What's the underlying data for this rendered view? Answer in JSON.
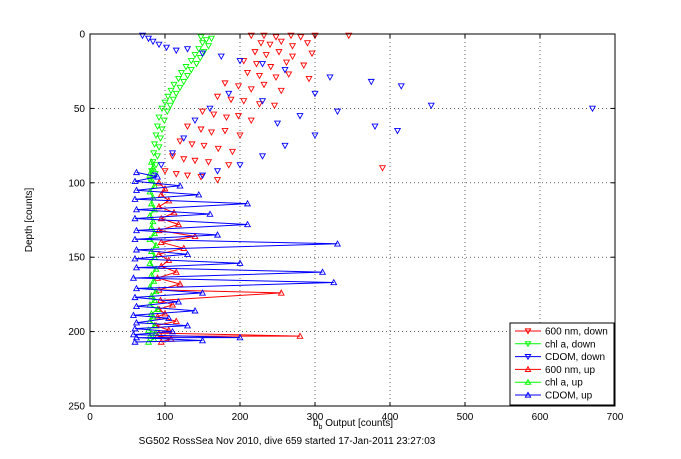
{
  "chart_data": {
    "type": "scatter",
    "xlabel_main": "b",
    "xlabel_sub": "b",
    "xlabel_rest": " Output [counts]",
    "ylabel": "Depth [counts]",
    "caption": "SG502 RossSea Nov 2010, dive 659 started 17-Jan-2011 23:27:03",
    "xlim": [
      0,
      700
    ],
    "ylim": [
      0,
      250
    ],
    "y_reversed": true,
    "grid": true,
    "grid_style": "dotted",
    "legend_position": "bottom-right",
    "xticks": [
      0,
      100,
      200,
      300,
      400,
      500,
      600,
      700
    ],
    "yticks": [
      0,
      50,
      100,
      150,
      200,
      250
    ],
    "colors": {
      "red": "#ff0000",
      "green": "#00ff00",
      "blue": "#0000ff",
      "frame": "#000000",
      "grid": "#000000"
    },
    "series": [
      {
        "name": "600 nm, down",
        "color": "#ff0000",
        "marker": "triangle-down",
        "connected": false,
        "points": [
          [
            215,
            1
          ],
          [
            232,
            1
          ],
          [
            248,
            2
          ],
          [
            268,
            1
          ],
          [
            281,
            2
          ],
          [
            300,
            1
          ],
          [
            345,
            1
          ],
          [
            228,
            6
          ],
          [
            240,
            7
          ],
          [
            255,
            5
          ],
          [
            270,
            8
          ],
          [
            290,
            6
          ],
          [
            220,
            12
          ],
          [
            235,
            14
          ],
          [
            252,
            12
          ],
          [
            270,
            15
          ],
          [
            296,
            13
          ],
          [
            205,
            18
          ],
          [
            222,
            20
          ],
          [
            241,
            22
          ],
          [
            262,
            19
          ],
          [
            285,
            21
          ],
          [
            210,
            26
          ],
          [
            226,
            28
          ],
          [
            248,
            29
          ],
          [
            265,
            27
          ],
          [
            292,
            30
          ],
          [
            180,
            33
          ],
          [
            198,
            35
          ],
          [
            215,
            37
          ],
          [
            232,
            34
          ],
          [
            255,
            38
          ],
          [
            170,
            42
          ],
          [
            188,
            44
          ],
          [
            205,
            45
          ],
          [
            226,
            47
          ],
          [
            246,
            48
          ],
          [
            150,
            52
          ],
          [
            165,
            54
          ],
          [
            182,
            56
          ],
          [
            198,
            55
          ],
          [
            215,
            58
          ],
          [
            130,
            62
          ],
          [
            148,
            64
          ],
          [
            162,
            66
          ],
          [
            180,
            65
          ],
          [
            200,
            68
          ],
          [
            120,
            72
          ],
          [
            136,
            74
          ],
          [
            152,
            75
          ],
          [
            171,
            77
          ],
          [
            190,
            79
          ],
          [
            110,
            82
          ],
          [
            125,
            84
          ],
          [
            140,
            85
          ],
          [
            158,
            86
          ],
          [
            185,
            88
          ],
          [
            100,
            92
          ],
          [
            115,
            94
          ],
          [
            130,
            95
          ],
          [
            148,
            96
          ],
          [
            170,
            98
          ],
          [
            390,
            90
          ]
        ]
      },
      {
        "name": "chl a, down",
        "color": "#00ff00",
        "marker": "triangle-down",
        "connected": false,
        "points": [
          [
            148,
            2
          ],
          [
            155,
            4
          ],
          [
            162,
            3
          ],
          [
            150,
            6
          ],
          [
            158,
            8
          ],
          [
            145,
            10
          ],
          [
            152,
            12
          ],
          [
            140,
            14
          ],
          [
            147,
            16
          ],
          [
            135,
            18
          ],
          [
            142,
            20
          ],
          [
            128,
            22
          ],
          [
            135,
            24
          ],
          [
            122,
            26
          ],
          [
            130,
            28
          ],
          [
            118,
            30
          ],
          [
            125,
            32
          ],
          [
            112,
            34
          ],
          [
            120,
            36
          ],
          [
            108,
            38
          ],
          [
            115,
            40
          ],
          [
            104,
            42
          ],
          [
            111,
            44
          ],
          [
            100,
            46
          ],
          [
            107,
            48
          ],
          [
            96,
            50
          ],
          [
            103,
            52
          ],
          [
            92,
            56
          ],
          [
            99,
            58
          ],
          [
            90,
            62
          ],
          [
            96,
            64
          ],
          [
            88,
            68
          ],
          [
            94,
            70
          ],
          [
            86,
            74
          ],
          [
            92,
            76
          ],
          [
            85,
            80
          ],
          [
            90,
            82
          ],
          [
            84,
            86
          ],
          [
            88,
            88
          ],
          [
            82,
            92
          ],
          [
            87,
            94
          ],
          [
            80,
            98
          ]
        ]
      },
      {
        "name": "CDOM, down",
        "color": "#0000ff",
        "marker": "triangle-down",
        "connected": false,
        "points": [
          [
            70,
            1
          ],
          [
            78,
            3
          ],
          [
            84,
            5
          ],
          [
            92,
            7
          ],
          [
            102,
            9
          ],
          [
            115,
            11
          ],
          [
            130,
            10
          ],
          [
            150,
            13
          ],
          [
            175,
            15
          ],
          [
            200,
            18
          ],
          [
            230,
            20
          ],
          [
            260,
            24
          ],
          [
            320,
            29
          ],
          [
            375,
            32
          ],
          [
            415,
            35
          ],
          [
            455,
            48
          ],
          [
            670,
            50
          ],
          [
            300,
            40
          ],
          [
            330,
            52
          ],
          [
            280,
            55
          ],
          [
            250,
            60
          ],
          [
            380,
            62
          ],
          [
            300,
            68
          ],
          [
            260,
            75
          ],
          [
            230,
            82
          ],
          [
            200,
            88
          ],
          [
            170,
            92
          ],
          [
            150,
            95
          ],
          [
            410,
            65
          ],
          [
            230,
            45
          ],
          [
            185,
            40
          ],
          [
            160,
            50
          ],
          [
            140,
            58
          ],
          [
            125,
            70
          ],
          [
            110,
            80
          ],
          [
            95,
            88
          ],
          [
            85,
            95
          ]
        ]
      },
      {
        "name": "600 nm, up",
        "color": "#ff0000",
        "marker": "triangle-up",
        "connected": true,
        "points": [
          [
            95,
            207
          ],
          [
            108,
            205
          ],
          [
            90,
            203
          ],
          [
            280,
            203
          ],
          [
            92,
            201
          ],
          [
            105,
            199
          ],
          [
            88,
            196
          ],
          [
            115,
            193
          ],
          [
            90,
            190
          ],
          [
            100,
            188
          ],
          [
            92,
            185
          ],
          [
            110,
            182
          ],
          [
            94,
            179
          ],
          [
            255,
            174
          ],
          [
            92,
            172
          ],
          [
            120,
            168
          ],
          [
            90,
            164
          ],
          [
            115,
            160
          ],
          [
            95,
            156
          ],
          [
            105,
            152
          ],
          [
            92,
            148
          ],
          [
            125,
            144
          ],
          [
            95,
            140
          ],
          [
            140,
            136
          ],
          [
            92,
            132
          ],
          [
            118,
            128
          ],
          [
            95,
            124
          ],
          [
            112,
            120
          ],
          [
            92,
            116
          ],
          [
            105,
            112
          ],
          [
            95,
            108
          ],
          [
            100,
            104
          ],
          [
            92,
            100
          ]
        ]
      },
      {
        "name": "chl a, up",
        "color": "#00ff00",
        "marker": "triangle-up",
        "connected": true,
        "points": [
          [
            78,
            207
          ],
          [
            85,
            205
          ],
          [
            80,
            203
          ],
          [
            88,
            201
          ],
          [
            78,
            199
          ],
          [
            86,
            196
          ],
          [
            80,
            193
          ],
          [
            84,
            190
          ],
          [
            82,
            188
          ],
          [
            90,
            185
          ],
          [
            80,
            182
          ],
          [
            86,
            179
          ],
          [
            82,
            176
          ],
          [
            88,
            173
          ],
          [
            80,
            170
          ],
          [
            85,
            166
          ],
          [
            82,
            162
          ],
          [
            88,
            158
          ],
          [
            80,
            154
          ],
          [
            86,
            150
          ],
          [
            82,
            146
          ],
          [
            88,
            142
          ],
          [
            80,
            138
          ],
          [
            86,
            134
          ],
          [
            82,
            130
          ],
          [
            84,
            126
          ],
          [
            80,
            122
          ],
          [
            86,
            118
          ],
          [
            82,
            114
          ],
          [
            84,
            110
          ],
          [
            80,
            106
          ],
          [
            86,
            102
          ],
          [
            82,
            98
          ],
          [
            80,
            94
          ],
          [
            84,
            90
          ],
          [
            82,
            86
          ]
        ]
      },
      {
        "name": "CDOM, up",
        "color": "#0000ff",
        "marker": "triangle-up",
        "connected": true,
        "points": [
          [
            60,
            207
          ],
          [
            150,
            206
          ],
          [
            62,
            204
          ],
          [
            200,
            204
          ],
          [
            58,
            202
          ],
          [
            110,
            200
          ],
          [
            60,
            198
          ],
          [
            130,
            196
          ],
          [
            62,
            194
          ],
          [
            105,
            191
          ],
          [
            58,
            189
          ],
          [
            140,
            186
          ],
          [
            62,
            183
          ],
          [
            118,
            180
          ],
          [
            60,
            177
          ],
          [
            150,
            174
          ],
          [
            62,
            171
          ],
          [
            325,
            167
          ],
          [
            58,
            164
          ],
          [
            310,
            160
          ],
          [
            62,
            157
          ],
          [
            200,
            154
          ],
          [
            60,
            151
          ],
          [
            130,
            148
          ],
          [
            62,
            145
          ],
          [
            330,
            141
          ],
          [
            60,
            138
          ],
          [
            170,
            135
          ],
          [
            62,
            132
          ],
          [
            210,
            128
          ],
          [
            60,
            124
          ],
          [
            160,
            121
          ],
          [
            62,
            118
          ],
          [
            210,
            114
          ],
          [
            60,
            111
          ],
          [
            145,
            108
          ],
          [
            62,
            105
          ],
          [
            120,
            102
          ],
          [
            60,
            99
          ],
          [
            90,
            96
          ],
          [
            62,
            93
          ]
        ]
      }
    ]
  },
  "legend": {
    "entries": [
      {
        "label": "600 nm, down",
        "color": "#ff0000",
        "marker": "triangle-down"
      },
      {
        "label": "chl a, down",
        "color": "#00ff00",
        "marker": "triangle-down"
      },
      {
        "label": "CDOM, down",
        "color": "#0000ff",
        "marker": "triangle-down"
      },
      {
        "label": "600 nm, up",
        "color": "#ff0000",
        "marker": "triangle-up"
      },
      {
        "label": "chl a, up",
        "color": "#00ff00",
        "marker": "triangle-up"
      },
      {
        "label": "CDOM, up",
        "color": "#0000ff",
        "marker": "triangle-up"
      }
    ]
  }
}
